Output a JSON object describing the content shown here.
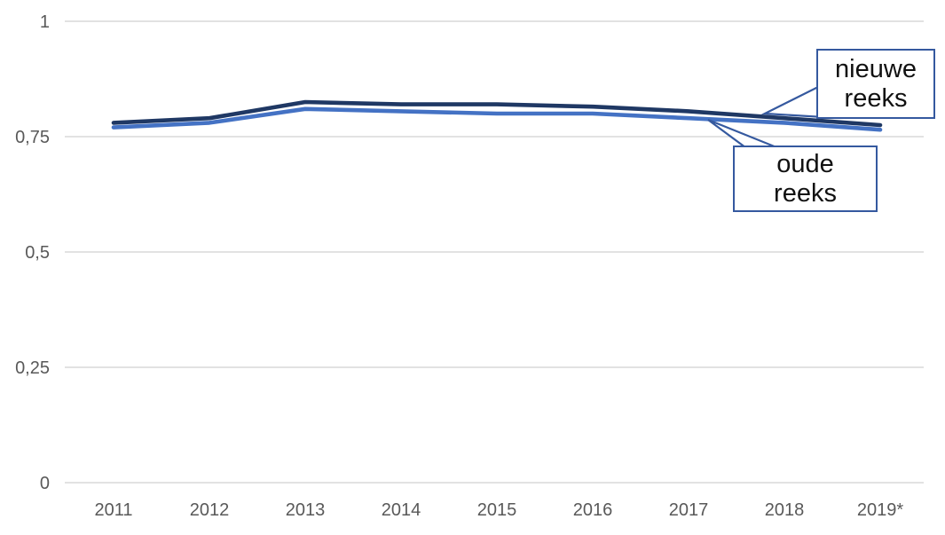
{
  "chart_data": {
    "type": "line",
    "categories": [
      "2011",
      "2012",
      "2013",
      "2014",
      "2015",
      "2016",
      "2017",
      "2018",
      "2019*"
    ],
    "series": [
      {
        "name": "oude reeks",
        "color": "#4472c4",
        "values": [
          0.77,
          0.78,
          0.81,
          0.805,
          0.8,
          0.8,
          0.79,
          0.78,
          0.765
        ]
      },
      {
        "name": "nieuwe reeks",
        "color": "#1f3864",
        "values": [
          0.78,
          0.79,
          0.825,
          0.82,
          0.82,
          0.815,
          0.805,
          0.79,
          0.775
        ]
      }
    ],
    "y_ticks": [
      {
        "label": "1",
        "value": 1
      },
      {
        "label": "0,75",
        "value": 0.75
      },
      {
        "label": "0,5",
        "value": 0.5
      },
      {
        "label": "0,25",
        "value": 0.25
      },
      {
        "label": "0",
        "value": 0
      }
    ],
    "ylim": [
      0,
      1
    ],
    "grid": true,
    "legend_position": "callout-labels-on-chart",
    "annotations": [
      {
        "label_lines": [
          "nieuwe",
          "reeks"
        ],
        "series": "nieuwe reeks"
      },
      {
        "label_lines": [
          "oude",
          "reeks"
        ],
        "series": "oude reeks"
      }
    ]
  },
  "colors": {
    "background": "#ffffff",
    "grid": "#d9d9d9",
    "axis_text": "#595959",
    "callout_border": "#35599f",
    "callout_text": "#111111",
    "series_oude": "#4472c4",
    "series_nieuwe": "#1f3864"
  }
}
